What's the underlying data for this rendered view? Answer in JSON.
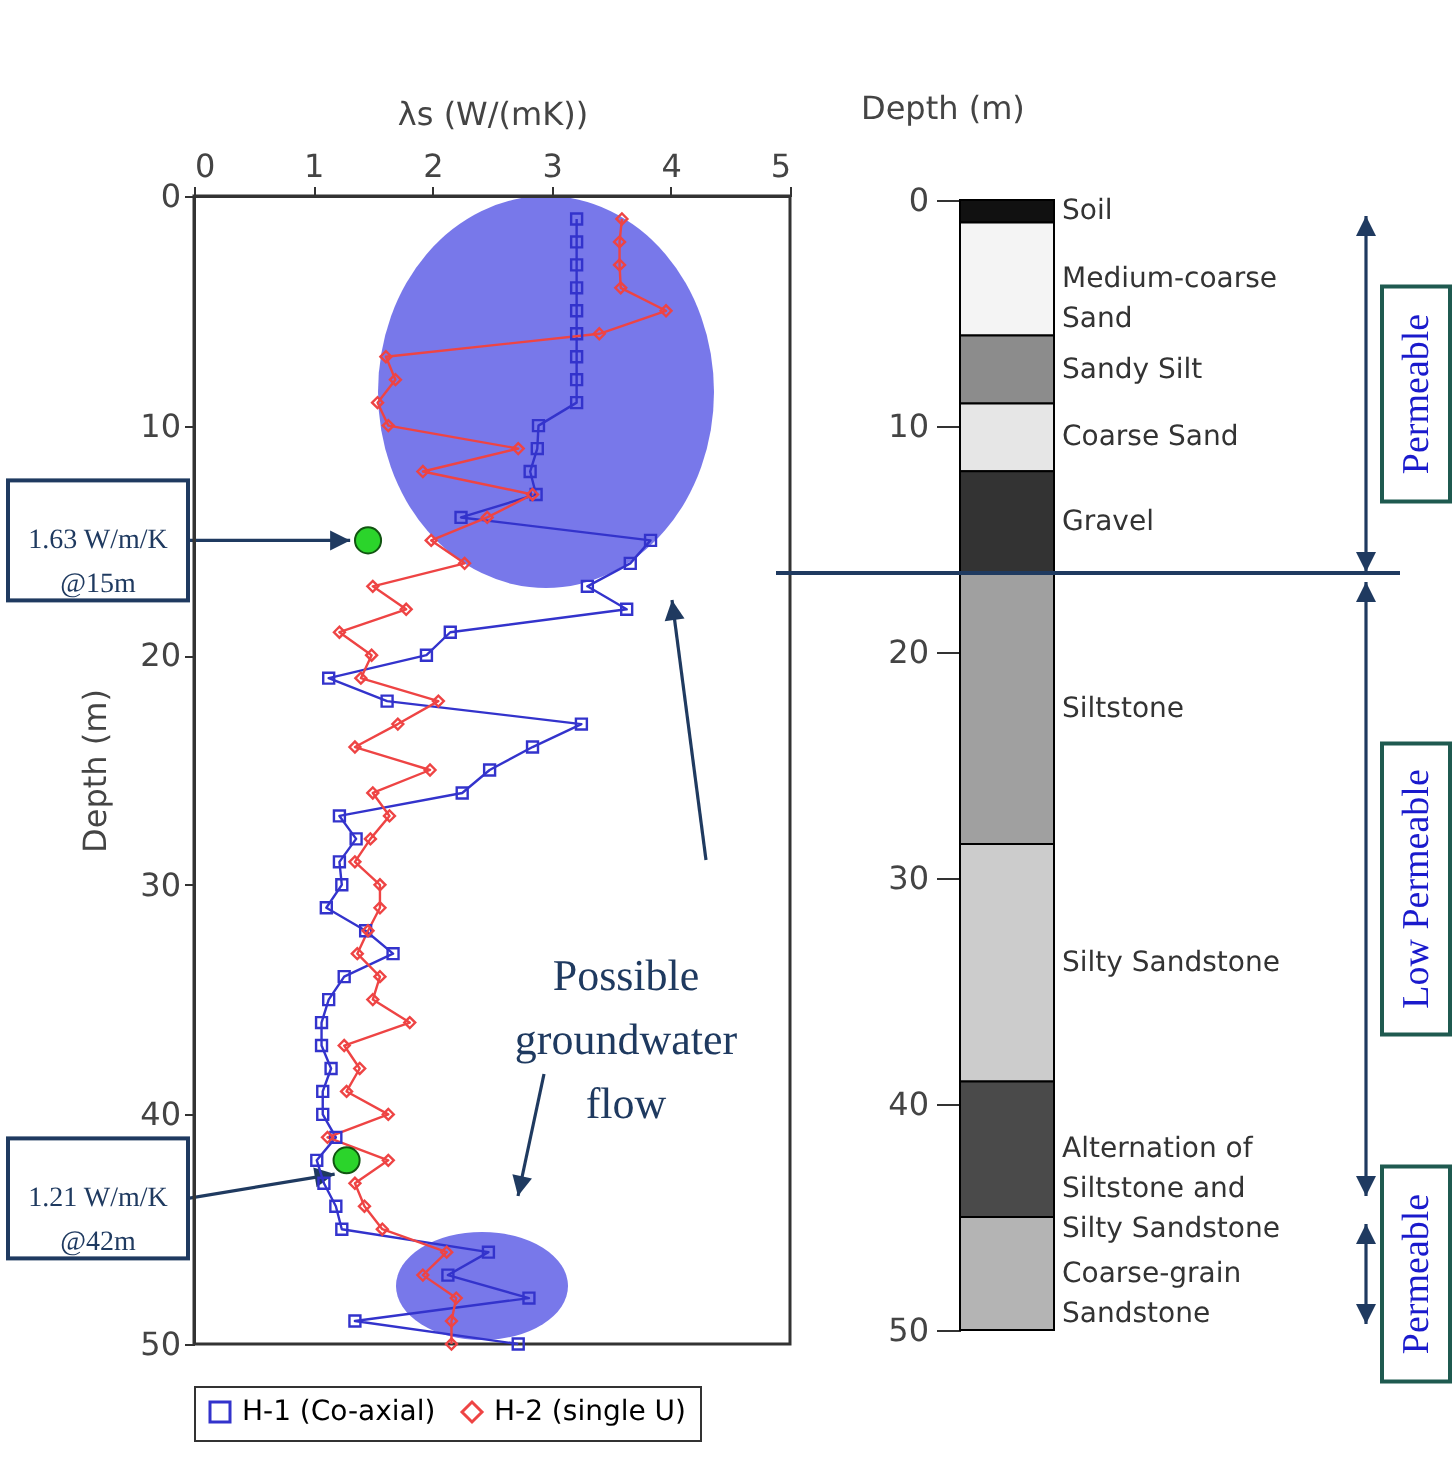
{
  "chart_data": [
    {
      "type": "line",
      "xlabel": "λs (W/(mK))",
      "ylabel": "Depth (m)",
      "xlim": [
        0,
        5
      ],
      "xticks": [
        0,
        1,
        2,
        3,
        4,
        5
      ],
      "ylim": [
        50,
        0
      ],
      "yticks": [
        0,
        10,
        20,
        30,
        40,
        50
      ],
      "legend": "bottom",
      "series": [
        {
          "name": "H-1 (Co-axial)",
          "color": "#3333cc",
          "marker": "square",
          "x": [
            3.21,
            3.21,
            3.21,
            3.21,
            3.21,
            3.21,
            3.21,
            3.21,
            3.21,
            2.89,
            2.88,
            2.82,
            2.87,
            2.24,
            3.83,
            3.66,
            3.3,
            3.63,
            2.15,
            1.95,
            1.13,
            1.62,
            3.25,
            2.84,
            2.48,
            2.25,
            1.22,
            1.36,
            1.22,
            1.24,
            1.11,
            1.44,
            1.67,
            1.26,
            1.13,
            1.07,
            1.07,
            1.15,
            1.08,
            1.08,
            1.19,
            1.03,
            1.09,
            1.19,
            1.24,
            2.47,
            2.13,
            2.81,
            1.35,
            2.72
          ],
          "values": [
            1,
            2,
            3,
            4,
            5,
            6,
            7,
            8,
            9,
            10,
            11,
            12,
            13,
            14,
            15,
            16,
            17,
            18,
            19,
            20,
            21,
            22,
            23,
            24,
            25,
            26,
            27,
            28,
            29,
            30,
            31,
            32,
            33,
            34,
            35,
            36,
            37,
            38,
            39,
            40,
            41,
            42,
            43,
            44,
            45,
            46,
            47,
            48,
            49,
            50
          ]
        },
        {
          "name": "H-2 (single U)",
          "color": "#ee4444",
          "marker": "diamond",
          "x": [
            3.59,
            3.57,
            3.57,
            3.58,
            3.96,
            3.4,
            1.61,
            1.69,
            1.54,
            1.63,
            2.72,
            1.92,
            2.84,
            2.46,
            1.99,
            2.27,
            1.5,
            1.78,
            1.22,
            1.49,
            1.4,
            2.05,
            1.71,
            1.35,
            1.98,
            1.5,
            1.64,
            1.48,
            1.35,
            1.56,
            1.56,
            1.46,
            1.37,
            1.56,
            1.5,
            1.81,
            1.26,
            1.39,
            1.28,
            1.63,
            1.12,
            1.63,
            1.35,
            1.43,
            1.58,
            2.12,
            1.92,
            2.2,
            2.16,
            2.16
          ],
          "values": [
            1,
            2,
            3,
            4,
            5,
            6,
            7,
            8,
            9,
            10,
            11,
            12,
            13,
            14,
            15,
            16,
            17,
            18,
            19,
            20,
            21,
            22,
            23,
            24,
            25,
            26,
            27,
            28,
            29,
            30,
            31,
            32,
            33,
            34,
            35,
            36,
            37,
            38,
            39,
            40,
            41,
            42,
            43,
            44,
            45,
            46,
            47,
            48,
            49,
            50
          ]
        },
        {
          "type": "scatter",
          "color": "#2bd42b",
          "marker": "circle",
          "x": [
            1.46,
            1.28
          ],
          "values": [
            15,
            42
          ]
        }
      ],
      "annotations": [
        {
          "text": "1.63 W/m/K\n@15m",
          "x": 1.31,
          "y": 15
        },
        {
          "text": "1.21 W/m/K\n@42m",
          "x": 1.18,
          "y": 42.6
        },
        "Possible groundwater flow"
      ]
    },
    {
      "type": "bar",
      "stacked": true,
      "categories": [
        null
      ],
      "ylabel": "Depth (m)",
      "ylim": [
        50,
        0
      ],
      "yticks": [
        0,
        10,
        20,
        30,
        40,
        50
      ],
      "tick_labels": "y",
      "series": [
        {
          "name": "Soil",
          "color": "#111111",
          "values": [
            1
          ]
        },
        {
          "name": "Medium-coarse Sand",
          "color": "#f4f4f4",
          "values": [
            5
          ]
        },
        {
          "name": "Sandy Silt",
          "color": "#8c8c8c",
          "values": [
            3
          ]
        },
        {
          "name": "Coarse Sand",
          "color": "#e6e6e6",
          "values": [
            3
          ]
        },
        {
          "name": "Gravel",
          "color": "#333333",
          "values": [
            4.5
          ]
        },
        {
          "name": "Siltstone",
          "color": "#a0a0a0",
          "values": [
            12
          ]
        },
        {
          "name": "Silty Sandstone",
          "color": "#cccccc",
          "values": [
            10.5
          ]
        },
        {
          "name": "Alternation of Siltstone and Silty Sandstone",
          "color": "#4a4a4a",
          "values": [
            6
          ]
        },
        {
          "name": "Coarse-grain Sandstone",
          "color": "#b4b4b4",
          "values": [
            5
          ]
        }
      ],
      "ref_lines": [
        {
          "axis": "y",
          "value": 16.5
        }
      ],
      "annotations": [
        "Permeable",
        "Low Permeable",
        "Permeable"
      ]
    }
  ]
}
